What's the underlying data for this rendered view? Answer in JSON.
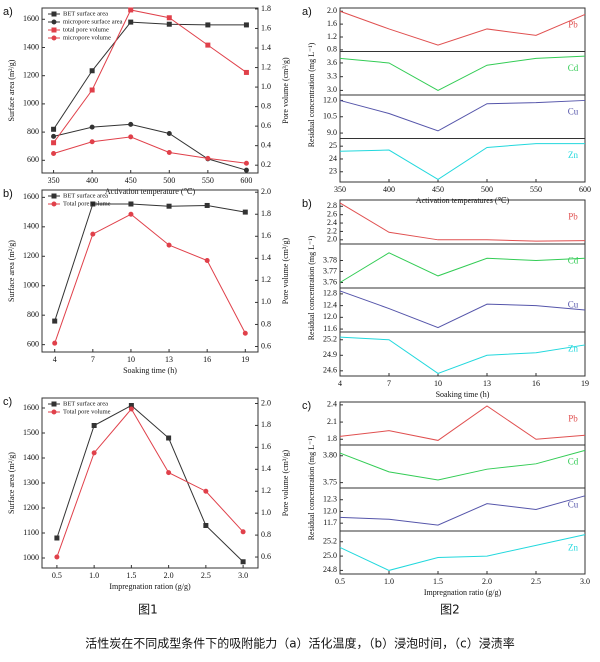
{
  "chart_data": [
    {
      "type": "line",
      "label": "a)",
      "xlabel": "Activation temperature (℃)",
      "ylabel": "Surface area (m²/g)",
      "y2label": "Pore volume (cm³/g)",
      "x": [
        350,
        400,
        450,
        500,
        550,
        600
      ],
      "xlim": [
        335,
        615
      ],
      "xticks": [
        350,
        400,
        450,
        500,
        550,
        600
      ],
      "ylim": [
        510,
        1680
      ],
      "yticks": [
        600,
        800,
        1000,
        1200,
        1400,
        1600
      ],
      "y2lim": [
        0.12,
        1.81
      ],
      "y2ticks": [
        0.2,
        0.4,
        0.6,
        0.8,
        {
          "value": 1.0,
          "label": "1.0"
        },
        1.2,
        1.4,
        1.6,
        1.8
      ],
      "legend": "upper left",
      "series": [
        {
          "name": "BET surface area",
          "color": "#333333",
          "marker": "square",
          "values": [
            820,
            1235,
            1580,
            1565,
            1560,
            1560
          ]
        },
        {
          "name": "micropore surface area",
          "color": "#333333",
          "marker": "circle",
          "values": [
            770,
            835,
            855,
            790,
            610,
            530
          ]
        },
        {
          "name": "total pore volume",
          "color": "#e0404a",
          "marker": "square",
          "axis": "y2",
          "values": [
            0.43,
            0.97,
            1.79,
            1.71,
            1.43,
            1.15
          ]
        },
        {
          "name": "micropore volume",
          "color": "#e0404a",
          "marker": "circle",
          "axis": "y2",
          "values": [
            0.32,
            0.44,
            0.49,
            0.33,
            0.27,
            0.22
          ]
        }
      ]
    },
    {
      "type": "line",
      "label": "b)",
      "xlabel": "Soaking time (h)",
      "ylabel": "Surface area (m²/g)",
      "y2label": "Pore volume (cm³/g)",
      "x": [
        4,
        7,
        10,
        13,
        16,
        19
      ],
      "xlim": [
        3,
        20
      ],
      "xticks": [
        4,
        7,
        10,
        13,
        16,
        19
      ],
      "ylim": [
        550,
        1650
      ],
      "yticks": [
        600,
        800,
        1000,
        1200,
        1400,
        1600
      ],
      "y2lim": [
        0.55,
        2.02
      ],
      "y2ticks": [
        0.6,
        0.8,
        {
          "value": 1.0,
          "label": "1.0"
        },
        1.2,
        1.4,
        1.6,
        1.8,
        {
          "value": 2.0,
          "label": "2.0"
        }
      ],
      "legend": "upper left",
      "series": [
        {
          "name": "BET surface area",
          "color": "#333333",
          "marker": "square",
          "values": [
            760,
            1555,
            1555,
            1540,
            1545,
            1500
          ]
        },
        {
          "name": "Total pore volume",
          "color": "#e0404a",
          "marker": "circle",
          "axis": "y2",
          "values": [
            0.63,
            1.62,
            1.8,
            1.52,
            1.38,
            0.72
          ]
        }
      ]
    },
    {
      "type": "line",
      "label": "c)",
      "xlabel": "Impregnation ration (g/g)",
      "ylabel": "Surface area (m²/g)",
      "y2label": "Pore volume (cm³/g)",
      "x": [
        0.5,
        1.0,
        1.5,
        2.0,
        2.5,
        3.0
      ],
      "xlim": [
        0.3,
        3.2
      ],
      "xticks": [
        0.5,
        {
          "value": 1.0,
          "label": "1.0"
        },
        1.5,
        {
          "value": 2.0,
          "label": "2.0"
        },
        2.5,
        {
          "value": 3.0,
          "label": "3.0"
        }
      ],
      "ylim": [
        960,
        1640
      ],
      "yticks": [
        1000,
        1100,
        1200,
        1300,
        1400,
        1500,
        1600
      ],
      "y2lim": [
        0.5,
        2.05
      ],
      "y2ticks": [
        0.6,
        0.8,
        {
          "value": 1.0,
          "label": "1.0"
        },
        1.2,
        1.4,
        1.6,
        1.8,
        {
          "value": 2.0,
          "label": "2.0"
        }
      ],
      "legend": "upper left",
      "series": [
        {
          "name": "BET surface area",
          "color": "#333333",
          "marker": "square",
          "values": [
            1080,
            1530,
            1610,
            1480,
            1130,
            985
          ]
        },
        {
          "name": "Total pore volume",
          "color": "#e0404a",
          "marker": "circle",
          "axis": "y2",
          "values": [
            0.6,
            1.55,
            1.95,
            1.37,
            1.2,
            0.83
          ]
        }
      ]
    },
    {
      "type": "stacked",
      "label": "a)",
      "xlabel": "Activation temperatures (℃)",
      "ylabel": "Residual concentration (mg L⁻¹)",
      "x": [
        350,
        400,
        450,
        500,
        550,
        600
      ],
      "xlim": [
        350,
        600
      ],
      "xticks": [
        350,
        400,
        450,
        500,
        550,
        600
      ],
      "panels": [
        {
          "name": "Pb",
          "color": "#e05050",
          "ylim": [
            0.75,
            2.1
          ],
          "yticks": [
            0.8,
            1.2,
            1.6,
            {
              "value": 2.0,
              "label": "2.0"
            }
          ],
          "values": [
            2.0,
            1.45,
            0.95,
            1.45,
            1.25,
            1.9
          ]
        },
        {
          "name": "Cd",
          "color": "#33cc55",
          "ylim": [
            2.9,
            3.85
          ],
          "yticks": [
            {
              "value": 3.0,
              "label": "3.0"
            },
            3.3,
            3.6
          ],
          "values": [
            3.7,
            3.6,
            3.0,
            3.55,
            3.7,
            3.75
          ]
        },
        {
          "name": "Cu",
          "color": "#5555aa",
          "ylim": [
            8.5,
            12.5
          ],
          "yticks": [
            {
              "value": 9.0,
              "label": "9.0"
            },
            10.5,
            {
              "value": 12.0,
              "label": "12.0"
            }
          ],
          "values": [
            12.0,
            10.8,
            9.2,
            11.7,
            11.8,
            12.0
          ]
        },
        {
          "name": "Zn",
          "color": "#22d8dd",
          "ylim": [
            22.2,
            25.6
          ],
          "yticks": [
            23,
            24,
            25
          ],
          "values": [
            24.6,
            24.7,
            22.4,
            24.9,
            25.2,
            25.2
          ]
        }
      ]
    },
    {
      "type": "stacked",
      "label": "b)",
      "xlabel": "Soaking time (h)",
      "ylabel": "Residual concentration (mg L⁻¹)",
      "x": [
        4,
        7,
        10,
        13,
        16,
        19
      ],
      "xlim": [
        4,
        19
      ],
      "xticks": [
        4,
        7,
        10,
        13,
        16,
        19
      ],
      "panels": [
        {
          "name": "Pb",
          "color": "#e05050",
          "ylim": [
            1.9,
            2.95
          ],
          "yticks": [
            {
              "value": 2.0,
              "label": "2.0"
            },
            2.2,
            2.4,
            2.6,
            2.8
          ],
          "values": [
            2.88,
            2.18,
            2.0,
            2.0,
            1.97,
            1.98
          ]
        },
        {
          "name": "Cd",
          "color": "#33cc55",
          "ylim": [
            3.755,
            3.795
          ],
          "yticks": [
            3.76,
            3.77,
            3.78
          ],
          "values": [
            3.76,
            3.787,
            3.766,
            3.782,
            3.78,
            3.782
          ]
        },
        {
          "name": "Cu",
          "color": "#5555aa",
          "ylim": [
            11.5,
            13.0
          ],
          "yticks": [
            11.6,
            {
              "value": 12.0,
              "label": "12.0"
            },
            12.4,
            12.8
          ],
          "values": [
            12.9,
            12.3,
            11.65,
            12.45,
            12.4,
            12.25
          ]
        },
        {
          "name": "Zn",
          "color": "#22d8dd",
          "ylim": [
            24.5,
            25.35
          ],
          "yticks": [
            24.6,
            24.9,
            25.2
          ],
          "values": [
            25.25,
            25.2,
            24.55,
            24.9,
            24.95,
            25.1
          ]
        }
      ]
    },
    {
      "type": "stacked",
      "label": "c)",
      "xlabel": "Impregnation ratio (g/g)",
      "ylabel": "Residual concentration (mg L⁻¹)",
      "x": [
        0.5,
        1.0,
        1.5,
        2.0,
        2.5,
        3.0
      ],
      "xlim": [
        0.5,
        3.0
      ],
      "xticks": [
        0.5,
        {
          "value": 1.0,
          "label": "1.0"
        },
        1.5,
        {
          "value": 2.0,
          "label": "2.0"
        },
        2.5,
        {
          "value": 3.0,
          "label": "3.0"
        }
      ],
      "panels": [
        {
          "name": "Pb",
          "color": "#e05050",
          "ylim": [
            1.7,
            2.45
          ],
          "yticks": [
            1.8,
            2.1,
            2.4
          ],
          "values": [
            1.85,
            1.95,
            1.78,
            2.38,
            1.8,
            1.87
          ]
        },
        {
          "name": "Cd",
          "color": "#33cc55",
          "ylim": [
            3.74,
            3.82
          ],
          "yticks": [
            3.75,
            {
              "value": 3.8,
              "label": "3.80"
            }
          ],
          "values": [
            3.805,
            3.77,
            3.755,
            3.775,
            3.785,
            3.81
          ]
        },
        {
          "name": "Cu",
          "color": "#5555aa",
          "ylim": [
            11.5,
            12.6
          ],
          "yticks": [
            11.7,
            {
              "value": 12.0,
              "label": "12.0"
            },
            12.3
          ],
          "values": [
            11.85,
            11.8,
            11.65,
            12.2,
            12.05,
            12.4
          ]
        },
        {
          "name": "Zn",
          "color": "#22d8dd",
          "ylim": [
            24.75,
            25.35
          ],
          "yticks": [
            24.8,
            {
              "value": 25.0,
              "label": "25.0"
            },
            25.2
          ],
          "values": [
            25.12,
            24.8,
            24.98,
            25.0,
            25.15,
            25.3
          ]
        }
      ]
    }
  ],
  "figure_labels": [
    "图1",
    "图2"
  ],
  "caption": "活性炭在不同成型条件下的吸附能力（a）活化温度，（b）浸泡时间，（c）浸渍率"
}
